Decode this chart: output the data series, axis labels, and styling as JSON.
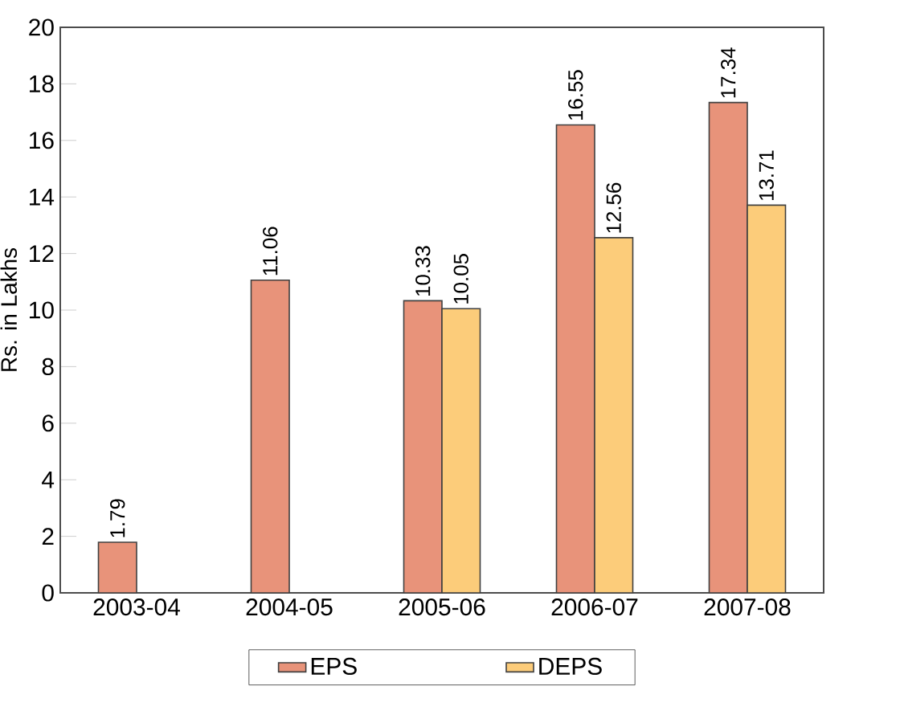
{
  "chart_data": {
    "type": "bar",
    "ylabel": "Rs. in Lakhs",
    "categories": [
      "2003-04",
      "2004-05",
      "2005-06",
      "2006-07",
      "2007-08"
    ],
    "series": [
      {
        "name": "EPS",
        "color": "#e8937a",
        "values": [
          1.79,
          11.06,
          10.33,
          16.55,
          17.34
        ]
      },
      {
        "name": "DEPS",
        "color": "#fccc7a",
        "values": [
          null,
          null,
          10.05,
          12.56,
          13.71
        ]
      }
    ],
    "ylim": [
      0,
      20
    ],
    "yticks": [
      0,
      2,
      4,
      6,
      8,
      10,
      12,
      14,
      16,
      18,
      20
    ],
    "data_labels": true,
    "legend": "bottom"
  }
}
